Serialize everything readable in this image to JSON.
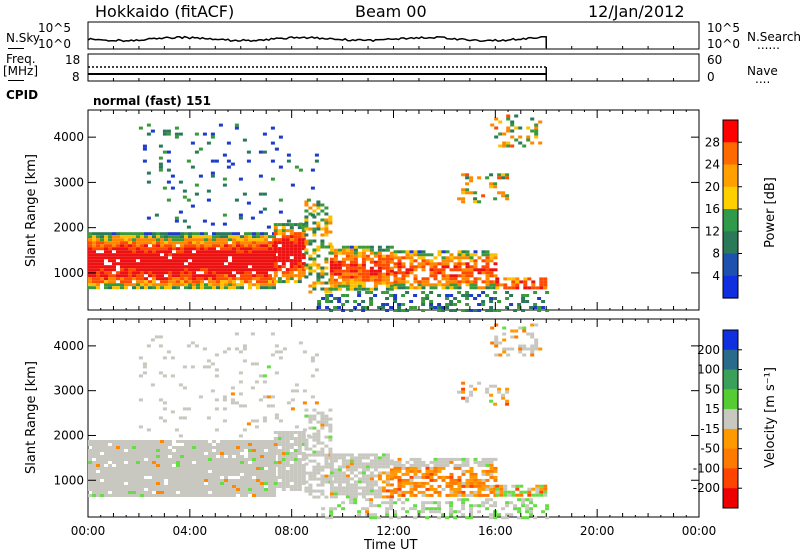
{
  "header": {
    "radar": "Hokkaido (fitACF)",
    "beam": "Beam 00",
    "date": "12/Jan/2012"
  },
  "strip_nsky": {
    "left_label": "N.Sky",
    "left_ticks": [
      "10^5",
      "10^0"
    ],
    "right_ticks": [
      "10^5",
      "10^0"
    ],
    "right_label": "N.Search",
    "right_legend_line": "......"
  },
  "strip_freq": {
    "left_label_1": "Freq.",
    "left_label_2": "[MHz]",
    "left_ticks": [
      "18",
      "8"
    ],
    "right_ticks": [
      "60",
      "0"
    ],
    "right_label": "Nave",
    "right_legend_line": "....",
    "cpid_label": "CPID",
    "mode_text": "normal (fast) 151"
  },
  "colors": {
    "red": "#ee1111",
    "orange": "#ff8800",
    "yellow": "#ffc000",
    "green": "#3a9a3a",
    "blue": "#1e3cc8",
    "grey": "#c8c8c0",
    "lightgreen": "#66dd44"
  },
  "chart_data": [
    {
      "type": "heatmap",
      "name": "power-panel",
      "ylabel": "Slant Range [km]",
      "yticks": [
        1000,
        2000,
        3000,
        4000
      ],
      "ylim": [
        180,
        4600
      ],
      "xlim": [
        0,
        24
      ],
      "colorbar": {
        "label": "Power [dB]",
        "ticks": [
          "28",
          "24",
          "20",
          "16",
          "12",
          "8",
          "4"
        ],
        "colors": [
          "#ff0000",
          "#ff6a00",
          "#ffa000",
          "#ffd000",
          "#2f9a4a",
          "#2a7a5a",
          "#1e50b0",
          "#1030e0"
        ]
      }
    },
    {
      "type": "heatmap",
      "name": "velocity-panel",
      "ylabel": "Slant Range [km]",
      "yticks": [
        1000,
        2000,
        3000,
        4000
      ],
      "ylim": [
        180,
        4600
      ],
      "xlim": [
        0,
        24
      ],
      "colorbar": {
        "label": "Velocity [m s⁻¹]",
        "ticks": [
          "200",
          "100",
          "50",
          "15",
          "-15",
          "-50",
          "-100",
          "-200"
        ],
        "colors": [
          "#1030e0",
          "#2a6a8a",
          "#3aa05a",
          "#55cc33",
          "#c8c8c0",
          "#ff9900",
          "#ff7a00",
          "#ff4400",
          "#ee0000"
        ]
      }
    }
  ],
  "x_axis": {
    "ticks": [
      "00:00",
      "04:00",
      "08:00",
      "12:00",
      "16:00",
      "20:00",
      "00:00"
    ],
    "label": "Time UT"
  }
}
